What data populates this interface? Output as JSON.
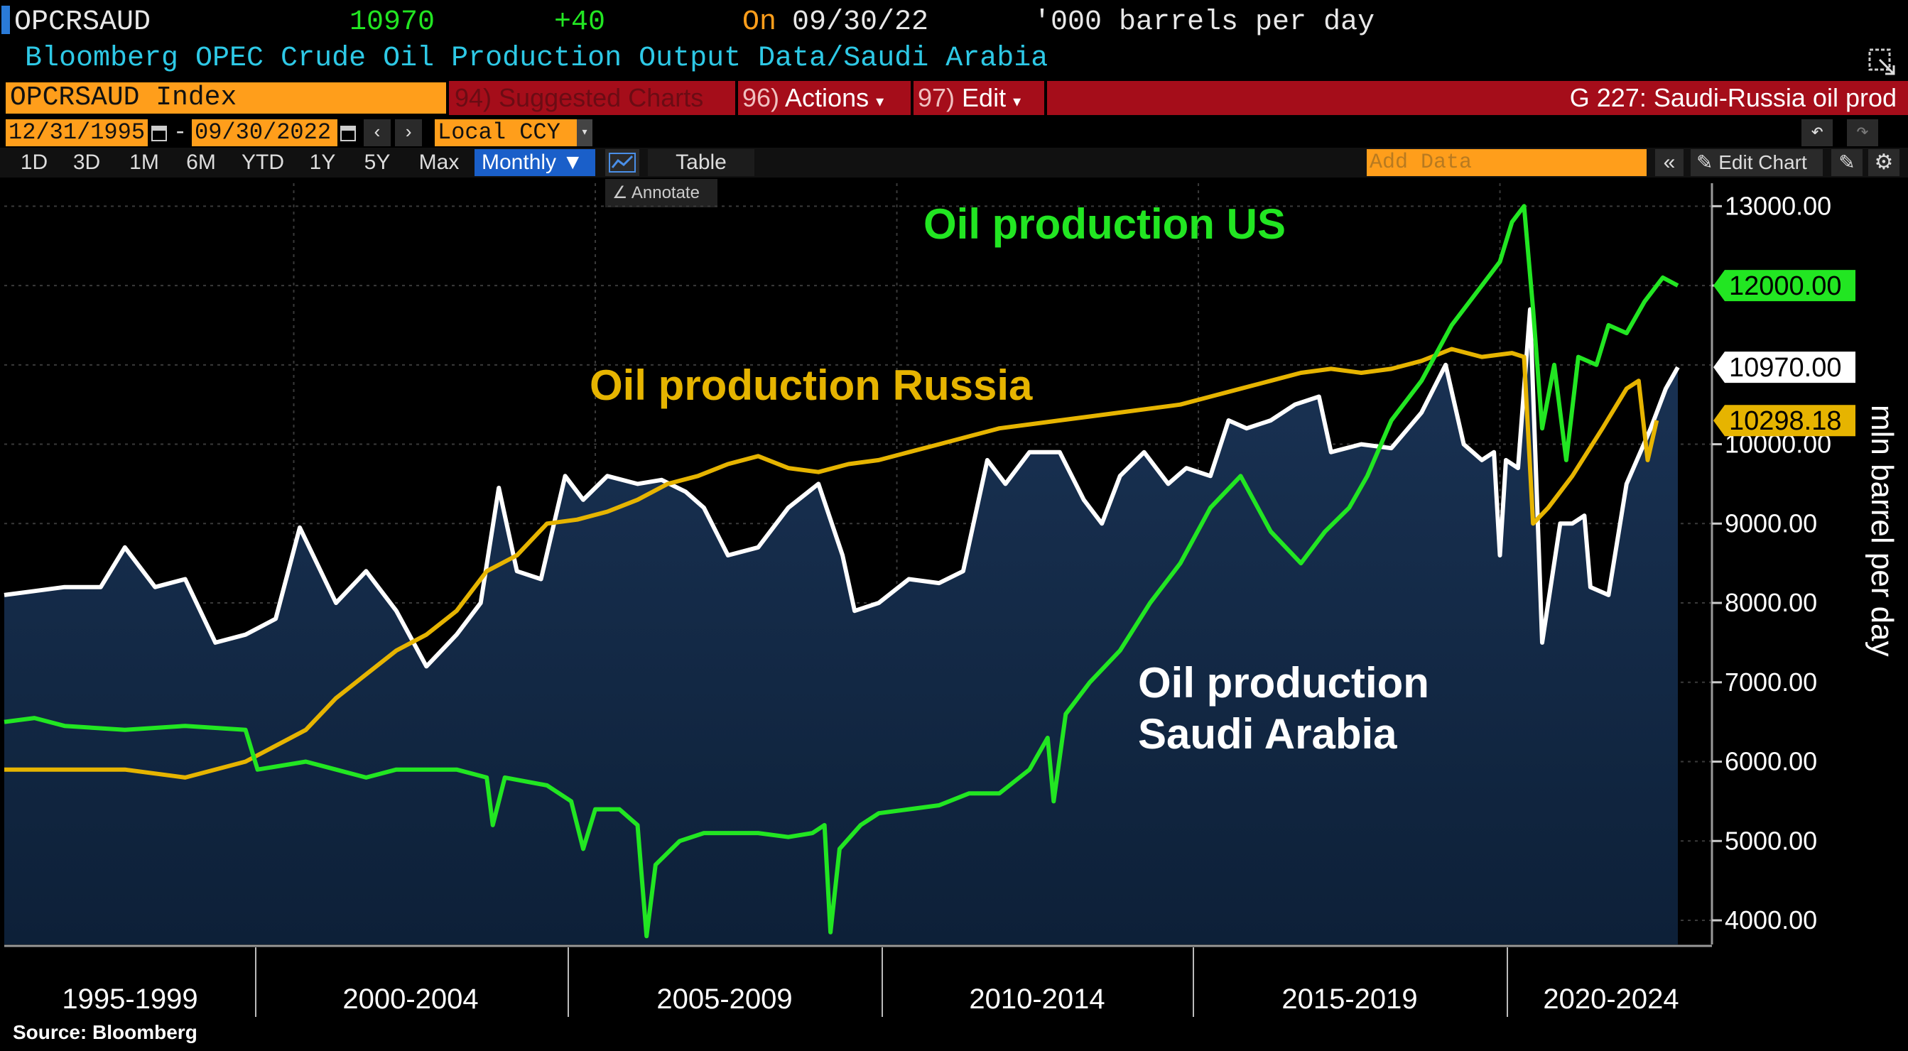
{
  "header": {
    "ticker": "OPCRSAUD",
    "last_value": "10970",
    "change": "+40",
    "on_label": "On",
    "date": "09/30/22",
    "units": "'000 barrels per day",
    "description": "Bloomberg OPEC Crude Oil Production Output Data/Saudi Arabia"
  },
  "menu": {
    "security": "OPCRSAUD Index",
    "suggested_num": "94)",
    "suggested": "Suggested Charts",
    "actions_num": "96)",
    "actions": "Actions",
    "edit_num": "97)",
    "edit": "Edit",
    "chart_title": "G 227: Saudi-Russia oil prod"
  },
  "range": {
    "start": "12/31/1995",
    "dash": "-",
    "end": "09/30/2022",
    "currency": "Local CCY"
  },
  "toolbar": {
    "periods": [
      "1D",
      "3D",
      "1M",
      "6M",
      "YTD",
      "1Y",
      "5Y",
      "Max"
    ],
    "frequency": "Monthly",
    "table": "Table",
    "add_data_placeholder": "Add Data",
    "edit_chart": "Edit Chart",
    "annotate": "Annotate"
  },
  "colors": {
    "us": "#22e622",
    "russia": "#e6b400",
    "saudi": "#ffffff",
    "area_top": "#1a3355",
    "area_bottom": "#0d2038",
    "header_orange": "#ff9e1b",
    "menu_red": "#a50d1a"
  },
  "chart_data": {
    "type": "line",
    "title": "Saudi-Russia oil prod",
    "ylabel": "mln barrel per day",
    "ylim": [
      3700,
      13400
    ],
    "y_ticks": [
      "4000.00",
      "5000.00",
      "6000.00",
      "7000.00",
      "8000.00",
      "9000.00",
      "10000.00",
      "12000.00",
      "13000.00"
    ],
    "x_period_labels": [
      "1995-1999",
      "2000-2004",
      "2005-2009",
      "2010-2014",
      "2015-2019",
      "2020-2024"
    ],
    "annotations": {
      "us": "Oil production US",
      "russia": "Oil production Russia",
      "saudi_line1": "Oil production",
      "saudi_line2": "Saudi Arabia"
    },
    "last_labels": {
      "us": "12000.00",
      "saudi": "10970.00",
      "russia": "10298.18"
    },
    "series": [
      {
        "name": "Saudi Arabia",
        "style": "area",
        "points": [
          [
            1995.0,
            8100
          ],
          [
            1995.5,
            8150
          ],
          [
            1996.0,
            8200
          ],
          [
            1996.6,
            8200
          ],
          [
            1997.0,
            8700
          ],
          [
            1997.5,
            8200
          ],
          [
            1998.0,
            8300
          ],
          [
            1998.5,
            7500
          ],
          [
            1999.0,
            7600
          ],
          [
            1999.5,
            7800
          ],
          [
            1999.9,
            8950
          ],
          [
            2000.5,
            8000
          ],
          [
            2001.0,
            8400
          ],
          [
            2001.5,
            7900
          ],
          [
            2002.0,
            7200
          ],
          [
            2002.5,
            7600
          ],
          [
            2002.9,
            8000
          ],
          [
            2003.2,
            9450
          ],
          [
            2003.5,
            8400
          ],
          [
            2003.9,
            8300
          ],
          [
            2004.3,
            9600
          ],
          [
            2004.6,
            9300
          ],
          [
            2005.0,
            9600
          ],
          [
            2005.5,
            9500
          ],
          [
            2005.9,
            9550
          ],
          [
            2006.3,
            9400
          ],
          [
            2006.6,
            9200
          ],
          [
            2007.0,
            8600
          ],
          [
            2007.5,
            8700
          ],
          [
            2008.0,
            9200
          ],
          [
            2008.5,
            9500
          ],
          [
            2008.9,
            8600
          ],
          [
            2009.1,
            7900
          ],
          [
            2009.5,
            8000
          ],
          [
            2010.0,
            8300
          ],
          [
            2010.5,
            8250
          ],
          [
            2010.9,
            8400
          ],
          [
            2011.3,
            9800
          ],
          [
            2011.6,
            9500
          ],
          [
            2012.0,
            9900
          ],
          [
            2012.5,
            9900
          ],
          [
            2012.9,
            9300
          ],
          [
            2013.2,
            9000
          ],
          [
            2013.5,
            9600
          ],
          [
            2013.9,
            9900
          ],
          [
            2014.3,
            9500
          ],
          [
            2014.6,
            9700
          ],
          [
            2015.0,
            9600
          ],
          [
            2015.3,
            10300
          ],
          [
            2015.6,
            10200
          ],
          [
            2016.0,
            10300
          ],
          [
            2016.4,
            10500
          ],
          [
            2016.8,
            10600
          ],
          [
            2017.0,
            9900
          ],
          [
            2017.5,
            10000
          ],
          [
            2018.0,
            9950
          ],
          [
            2018.5,
            10400
          ],
          [
            2018.9,
            11000
          ],
          [
            2019.2,
            10000
          ],
          [
            2019.5,
            9800
          ],
          [
            2019.7,
            9900
          ],
          [
            2019.8,
            8600
          ],
          [
            2019.9,
            9800
          ],
          [
            2020.1,
            9700
          ],
          [
            2020.3,
            11700
          ],
          [
            2020.5,
            7500
          ],
          [
            2020.8,
            9000
          ],
          [
            2021.0,
            9000
          ],
          [
            2021.2,
            9100
          ],
          [
            2021.3,
            8200
          ],
          [
            2021.6,
            8100
          ],
          [
            2021.9,
            9500
          ],
          [
            2022.3,
            10200
          ],
          [
            2022.55,
            10700
          ],
          [
            2022.75,
            10970
          ]
        ]
      },
      {
        "name": "Russia",
        "style": "line",
        "points": [
          [
            1995.0,
            5900
          ],
          [
            1996.0,
            5900
          ],
          [
            1997.0,
            5900
          ],
          [
            1998.0,
            5800
          ],
          [
            1999.0,
            6000
          ],
          [
            1999.5,
            6200
          ],
          [
            2000.0,
            6400
          ],
          [
            2000.5,
            6800
          ],
          [
            2001.0,
            7100
          ],
          [
            2001.5,
            7400
          ],
          [
            2002.0,
            7600
          ],
          [
            2002.5,
            7900
          ],
          [
            2003.0,
            8400
          ],
          [
            2003.5,
            8600
          ],
          [
            2004.0,
            9000
          ],
          [
            2004.5,
            9050
          ],
          [
            2005.0,
            9150
          ],
          [
            2005.5,
            9300
          ],
          [
            2006.0,
            9500
          ],
          [
            2006.5,
            9600
          ],
          [
            2007.0,
            9750
          ],
          [
            2007.5,
            9850
          ],
          [
            2008.0,
            9700
          ],
          [
            2008.5,
            9650
          ],
          [
            2009.0,
            9750
          ],
          [
            2009.5,
            9800
          ],
          [
            2010.0,
            9900
          ],
          [
            2010.5,
            10000
          ],
          [
            2011.0,
            10100
          ],
          [
            2011.5,
            10200
          ],
          [
            2012.0,
            10250
          ],
          [
            2012.5,
            10300
          ],
          [
            2013.0,
            10350
          ],
          [
            2013.5,
            10400
          ],
          [
            2014.0,
            10450
          ],
          [
            2014.5,
            10500
          ],
          [
            2015.0,
            10600
          ],
          [
            2015.5,
            10700
          ],
          [
            2016.0,
            10800
          ],
          [
            2016.5,
            10900
          ],
          [
            2017.0,
            10950
          ],
          [
            2017.5,
            10900
          ],
          [
            2018.0,
            10950
          ],
          [
            2018.5,
            11050
          ],
          [
            2019.0,
            11200
          ],
          [
            2019.5,
            11100
          ],
          [
            2020.0,
            11150
          ],
          [
            2020.2,
            11100
          ],
          [
            2020.35,
            9000
          ],
          [
            2020.6,
            9200
          ],
          [
            2021.0,
            9600
          ],
          [
            2021.5,
            10200
          ],
          [
            2021.9,
            10700
          ],
          [
            2022.1,
            10800
          ],
          [
            2022.25,
            9800
          ],
          [
            2022.4,
            10300
          ]
        ]
      },
      {
        "name": "US",
        "style": "line",
        "points": [
          [
            1995.0,
            6500
          ],
          [
            1995.5,
            6550
          ],
          [
            1996.0,
            6450
          ],
          [
            1997.0,
            6400
          ],
          [
            1998.0,
            6450
          ],
          [
            1999.0,
            6400
          ],
          [
            1999.2,
            5900
          ],
          [
            2000.0,
            6000
          ],
          [
            2000.5,
            5900
          ],
          [
            2001.0,
            5800
          ],
          [
            2001.5,
            5900
          ],
          [
            2002.0,
            5900
          ],
          [
            2002.5,
            5900
          ],
          [
            2003.0,
            5800
          ],
          [
            2003.1,
            5200
          ],
          [
            2003.3,
            5800
          ],
          [
            2004.0,
            5700
          ],
          [
            2004.4,
            5500
          ],
          [
            2004.6,
            4900
          ],
          [
            2004.8,
            5400
          ],
          [
            2005.2,
            5400
          ],
          [
            2005.5,
            5200
          ],
          [
            2005.65,
            3800
          ],
          [
            2005.8,
            4700
          ],
          [
            2006.2,
            5000
          ],
          [
            2006.6,
            5100
          ],
          [
            2007.0,
            5100
          ],
          [
            2007.5,
            5100
          ],
          [
            2008.0,
            5050
          ],
          [
            2008.4,
            5100
          ],
          [
            2008.6,
            5200
          ],
          [
            2008.7,
            3850
          ],
          [
            2008.85,
            4900
          ],
          [
            2009.2,
            5200
          ],
          [
            2009.5,
            5350
          ],
          [
            2010.0,
            5400
          ],
          [
            2010.5,
            5450
          ],
          [
            2011.0,
            5600
          ],
          [
            2011.5,
            5600
          ],
          [
            2012.0,
            5900
          ],
          [
            2012.3,
            6300
          ],
          [
            2012.4,
            5500
          ],
          [
            2012.6,
            6600
          ],
          [
            2013.0,
            7000
          ],
          [
            2013.5,
            7400
          ],
          [
            2014.0,
            8000
          ],
          [
            2014.5,
            8500
          ],
          [
            2015.0,
            9200
          ],
          [
            2015.5,
            9600
          ],
          [
            2016.0,
            8900
          ],
          [
            2016.5,
            8500
          ],
          [
            2016.9,
            8900
          ],
          [
            2017.3,
            9200
          ],
          [
            2017.6,
            9600
          ],
          [
            2018.0,
            10300
          ],
          [
            2018.5,
            10800
          ],
          [
            2019.0,
            11500
          ],
          [
            2019.5,
            12000
          ],
          [
            2019.8,
            12300
          ],
          [
            2020.0,
            12800
          ],
          [
            2020.2,
            13000
          ],
          [
            2020.35,
            11700
          ],
          [
            2020.5,
            10200
          ],
          [
            2020.7,
            11000
          ],
          [
            2020.9,
            9800
          ],
          [
            2021.1,
            11100
          ],
          [
            2021.4,
            11000
          ],
          [
            2021.6,
            11500
          ],
          [
            2021.9,
            11400
          ],
          [
            2022.2,
            11800
          ],
          [
            2022.5,
            12100
          ],
          [
            2022.75,
            12000
          ]
        ]
      }
    ]
  },
  "footer": {
    "source": "Source: Bloomberg"
  }
}
